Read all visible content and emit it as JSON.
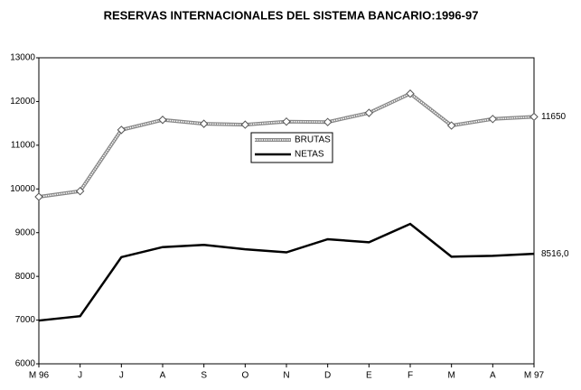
{
  "chart_data": {
    "type": "line",
    "title": "RESERVAS INTERNACIONALES DEL SISTEMA BANCARIO:1996-97",
    "categories": [
      "M 96",
      "J",
      "J",
      "A",
      "S",
      "O",
      "N",
      "D",
      "E",
      "F",
      "M",
      "A",
      "M 97"
    ],
    "series": [
      {
        "name": "BRUTAS",
        "color": "#888888",
        "marker": "diamond",
        "values": [
          9820,
          9950,
          11350,
          11580,
          11490,
          11470,
          11540,
          11530,
          11740,
          12180,
          11450,
          11600,
          11650
        ],
        "value_labels": [
          null,
          null,
          null,
          null,
          null,
          null,
          null,
          null,
          null,
          null,
          null,
          null,
          "11650"
        ]
      },
      {
        "name": "NETAS",
        "color": "#000000",
        "values": [
          6990,
          7090,
          8440,
          8670,
          8720,
          8620,
          8550,
          8850,
          8780,
          9200,
          8450,
          8470,
          8516
        ],
        "value_labels": [
          null,
          null,
          null,
          null,
          null,
          null,
          null,
          null,
          null,
          null,
          null,
          null,
          "8516,0"
        ]
      }
    ],
    "ylim": [
      6000,
      13000
    ],
    "yticks": [
      6000,
      7000,
      8000,
      9000,
      10000,
      11000,
      12000,
      13000
    ],
    "grid": false,
    "legend": "center"
  }
}
